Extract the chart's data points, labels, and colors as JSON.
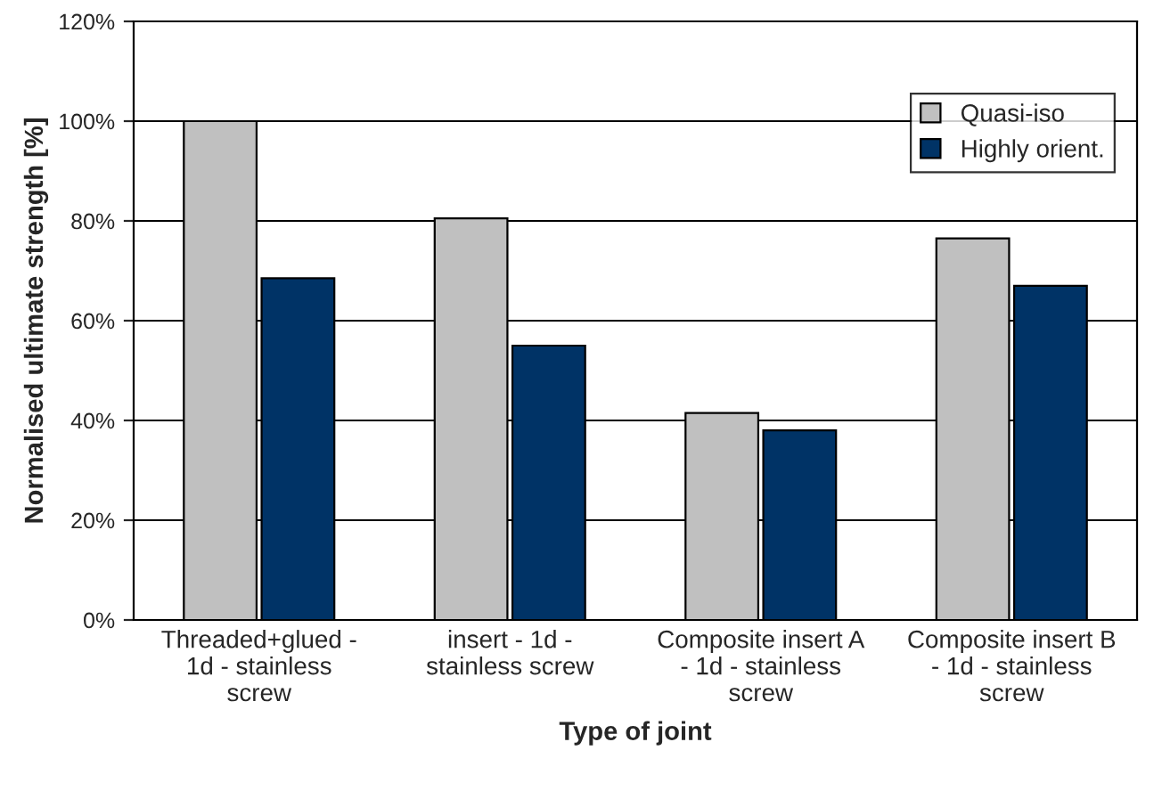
{
  "chart_data": {
    "type": "bar",
    "xlabel": "Type of joint",
    "ylabel": "Normalised ultimate strength [%]",
    "categories": [
      "Threaded+glued -\n1d - stainless\nscrew",
      "insert - 1d -\nstainless screw",
      "Composite insert A\n- 1d - stainless\nscrew",
      "Composite insert B\n- 1d - stainless\nscrew"
    ],
    "series": [
      {
        "name": "Quasi-iso",
        "color": "#c0c0c0",
        "values": [
          100,
          80.5,
          41.5,
          76.5
        ]
      },
      {
        "name": "Highly orient.",
        "color": "#003366",
        "values": [
          68.5,
          55,
          38,
          67
        ]
      }
    ],
    "ylim": [
      0,
      120
    ],
    "yticks": [
      {
        "value": 0,
        "label": "0%"
      },
      {
        "value": 20,
        "label": "20%"
      },
      {
        "value": 40,
        "label": "40%"
      },
      {
        "value": 60,
        "label": "60%"
      },
      {
        "value": 80,
        "label": "80%"
      },
      {
        "value": 100,
        "label": "100%"
      },
      {
        "value": 120,
        "label": "120%"
      }
    ],
    "grid": "y",
    "legend": "top right"
  }
}
